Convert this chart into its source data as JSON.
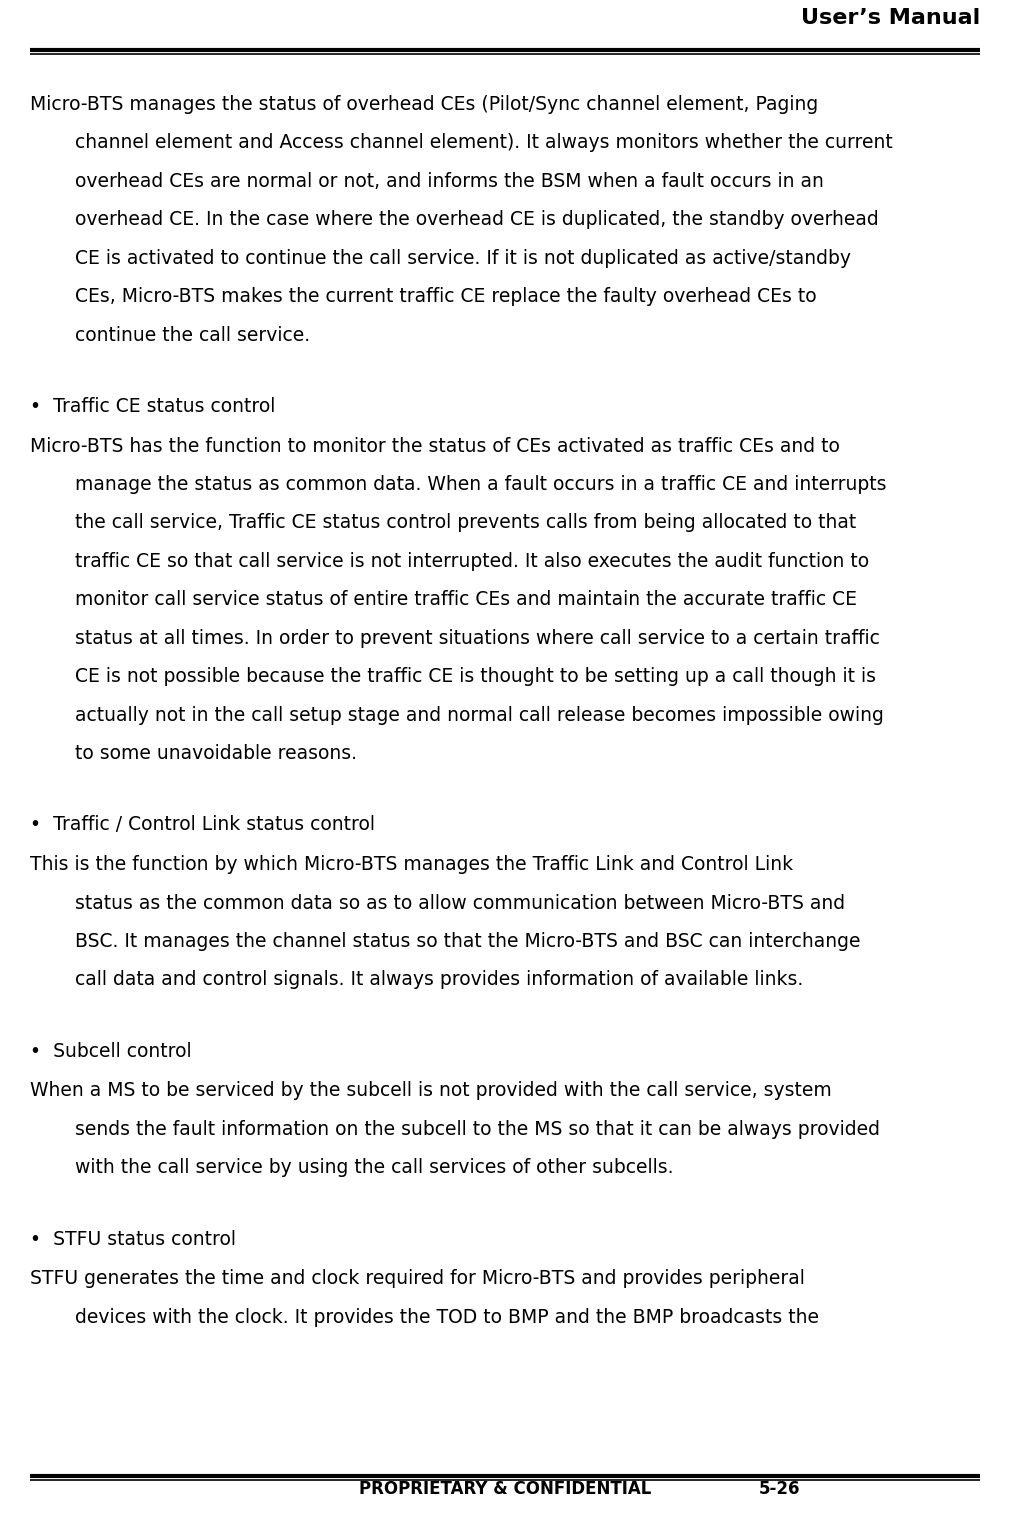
{
  "header_title": "User’s Manual",
  "footer_left": "PROPRIETARY & CONFIDENTIAL",
  "footer_right": "5-26",
  "bg_color": "#ffffff",
  "text_color": "#000000",
  "body_fontsize": 13.5,
  "bullet_fontsize": 13.5,
  "header_fontsize": 16,
  "footer_fontsize": 12,
  "paragraphs": [
    {
      "type": "body",
      "first_indent": false,
      "rest_indent": true,
      "text": "Micro-BTS manages the status of overhead CEs (Pilot/Sync channel element, Paging\nchannel element and Access channel element). It always monitors whether the current\noverhead CEs are normal or not, and informs the BSM when a fault occurs in an\noverhead CE. In the case where the overhead CE is duplicated, the standby overhead\nCE is activated to continue the call service. If it is not duplicated as active/standby\nCEs, Micro-BTS makes the current traffic CE replace the faulty overhead CEs to\ncontinue the call service."
    },
    {
      "type": "bullet",
      "text": "Traffic CE status control"
    },
    {
      "type": "body",
      "first_indent": false,
      "rest_indent": true,
      "text": "Micro-BTS has the function to monitor the status of CEs activated as traffic CEs and to\nmanage the status as common data. When a fault occurs in a traffic CE and interrupts\nthe call service, Traffic CE status control prevents calls from being allocated to that\ntraffic CE so that call service is not interrupted. It also executes the audit function to\nmonitor call service status of entire traffic CEs and maintain the accurate traffic CE\nstatus at all times. In order to prevent situations where call service to a certain traffic\nCE is not possible because the traffic CE is thought to be setting up a call though it is\nactually not in the call setup stage and normal call release becomes impossible owing\nto some unavoidable reasons."
    },
    {
      "type": "bullet",
      "text": "Traffic / Control Link status control"
    },
    {
      "type": "body",
      "first_indent": false,
      "rest_indent": true,
      "text": "This is the function by which Micro-BTS manages the Traffic Link and Control Link\nstatus as the common data so as to allow communication between Micro-BTS and\nBSC. It manages the channel status so that the Micro-BTS and BSC can interchange\ncall data and control signals. It always provides information of available links."
    },
    {
      "type": "bullet",
      "text": "Subcell control"
    },
    {
      "type": "body",
      "first_indent": false,
      "rest_indent": true,
      "text": "When a MS to be serviced by the subcell is not provided with the call service, system\nsends the fault information on the subcell to the MS so that it can be always provided\nwith the call service by using the call services of other subcells."
    },
    {
      "type": "bullet",
      "text": "STFU status control"
    },
    {
      "type": "body",
      "first_indent": false,
      "rest_indent": true,
      "text": "STFU generates the time and clock required for Micro-BTS and provides peripheral\ndevices with the clock. It provides the TOD to BMP and the BMP broadcasts the"
    }
  ]
}
